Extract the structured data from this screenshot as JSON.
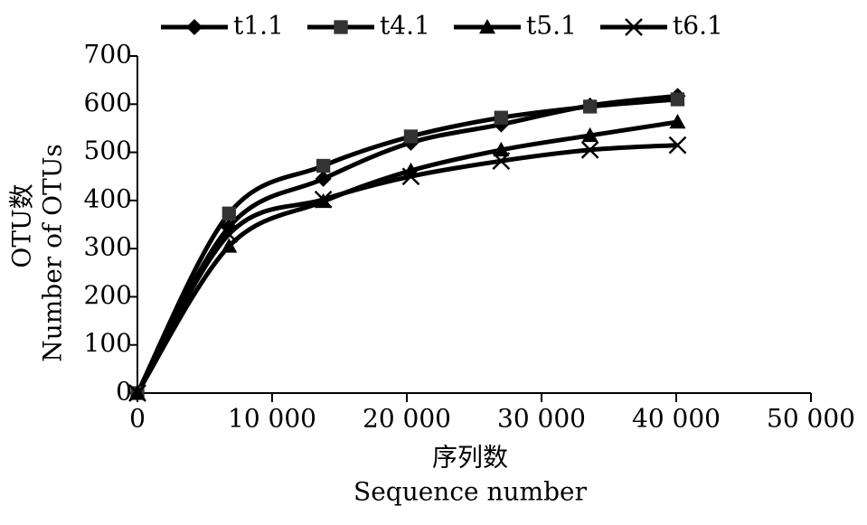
{
  "chart_data": {
    "type": "line",
    "xlabel": [
      "序列数",
      "Sequence number"
    ],
    "ylabel": [
      "OTU数",
      "Number of OTUs"
    ],
    "x": [
      0,
      6800,
      13800,
      20300,
      27000,
      33600,
      40100
    ],
    "series": [
      {
        "name": "t1.1",
        "color": "#000000",
        "marker": "diamond",
        "values": [
          0,
          345,
          445,
          520,
          558,
          597,
          617
        ]
      },
      {
        "name": "t4.1",
        "color": "#000000",
        "marker": "square",
        "values": [
          0,
          373,
          472,
          533,
          572,
          595,
          610
        ]
      },
      {
        "name": "t5.1",
        "color": "#000000",
        "marker": "triangle",
        "values": [
          0,
          305,
          398,
          462,
          505,
          535,
          563
        ]
      },
      {
        "name": "t6.1",
        "color": "#000000",
        "marker": "x",
        "values": [
          0,
          330,
          402,
          450,
          482,
          505,
          515
        ]
      }
    ],
    "xlim": [
      0,
      50000
    ],
    "xticks": [
      0,
      {
        "value": 10000,
        "label": "10 000"
      },
      {
        "value": 20000,
        "label": "20 000"
      },
      {
        "value": 30000,
        "label": "30 000"
      },
      {
        "value": 40000,
        "label": "40 000"
      },
      {
        "value": 50000,
        "label": "50 000"
      }
    ],
    "ylim": [
      0,
      700
    ],
    "yticks": [
      0,
      100,
      200,
      300,
      400,
      500,
      600,
      700
    ],
    "legend": "top"
  }
}
